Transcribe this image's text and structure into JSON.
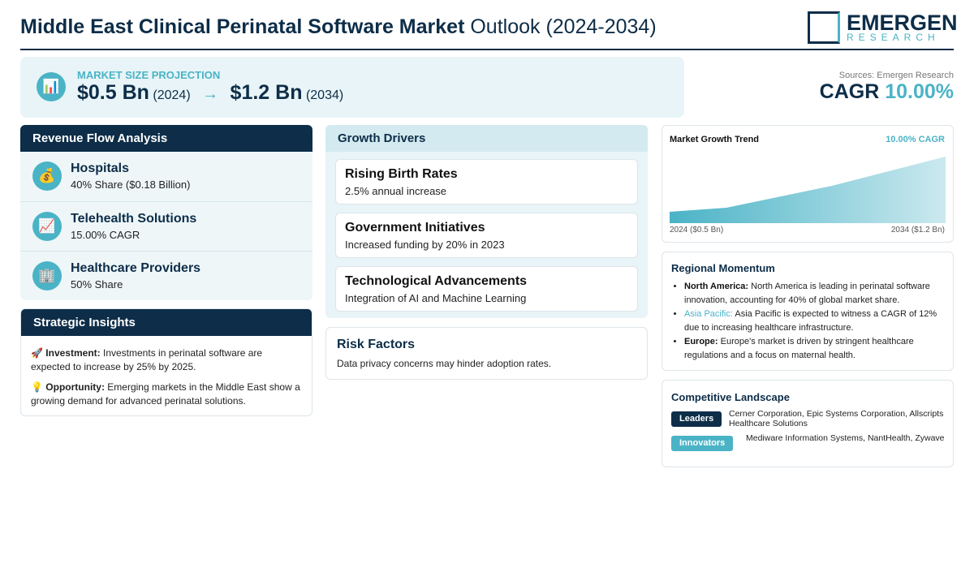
{
  "header": {
    "title_bold": "Middle East Clinical Perinatal Software Market",
    "title_rest": "Outlook (2024-2034)",
    "logo_top": "EMERGEN",
    "logo_bottom": "RESEARCH"
  },
  "projection": {
    "icon": "📊",
    "label": "MARKET SIZE PROJECTION",
    "start_value": "$0.5 Bn",
    "start_year": "(2024)",
    "arrow": "→",
    "end_value": "$1.2 Bn",
    "end_year": "(2034)"
  },
  "summary": {
    "source": "Sources: Emergen Research",
    "cagr_label": "CAGR",
    "cagr_value": "10.00%"
  },
  "revenue_flow": {
    "title": "Revenue Flow Analysis",
    "items": [
      {
        "icon": "💰",
        "name": "Hospitals",
        "detail": "40% Share ($0.18 Billion)"
      },
      {
        "icon": "📈",
        "name": "Telehealth Solutions",
        "detail": "15.00% CAGR"
      },
      {
        "icon": "🏢",
        "name": "Healthcare Providers",
        "detail": "50% Share"
      }
    ]
  },
  "strategic_insights": {
    "title": "Strategic Insights",
    "items": [
      {
        "icon": "🚀",
        "label": "Investment:",
        "text": "Investments in perinatal software are expected to increase by 25% by 2025."
      },
      {
        "icon": "💡",
        "label": "Opportunity:",
        "text": "Emerging markets in the Middle East show a growing demand for advanced perinatal solutions."
      }
    ]
  },
  "growth_drivers": {
    "title": "Growth Drivers",
    "items": [
      {
        "name": "Rising Birth Rates",
        "detail": "2.5% annual increase"
      },
      {
        "name": "Government Initiatives",
        "detail": "Increased funding by 20% in 2023"
      },
      {
        "name": "Technological Advancements",
        "detail": "Integration of AI and Machine Learning"
      }
    ]
  },
  "risk_factors": {
    "title": "Risk Factors",
    "text": "Data privacy concerns may hinder adoption rates."
  },
  "trend": {
    "title": "Market Growth Trend",
    "cagr": "10.00% CAGR",
    "start_label": "2024 ($0.5 Bn)",
    "end_label": "2034 ($1.2 Bn)"
  },
  "regional": {
    "title": "Regional Momentum",
    "items": [
      {
        "name": "North America:",
        "text": "North America is leading in perinatal software innovation, accounting for 40% of global market share."
      },
      {
        "name": "Asia Pacific:",
        "text": "Asia Pacific is expected to witness a CAGR of 12% due to increasing healthcare infrastructure."
      },
      {
        "name": "Europe:",
        "text": "Europe's market is driven by stringent healthcare regulations and a focus on maternal health."
      }
    ]
  },
  "competitive": {
    "title": "Competitive Landscape",
    "items": [
      {
        "badge": "Leaders",
        "text": "Cerner Corporation, Epic Systems Corporation, Allscripts Healthcare Solutions"
      },
      {
        "badge": "Innovators",
        "text": "Mediware Information Systems, NantHealth, Zywave"
      }
    ]
  }
}
